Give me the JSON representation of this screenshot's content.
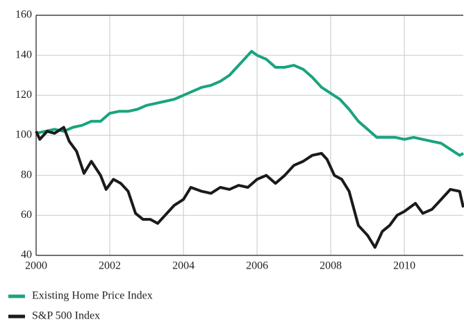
{
  "chart_data": {
    "type": "line",
    "xlim": [
      2000,
      2011.6
    ],
    "xticks": [
      2000,
      2002,
      2004,
      2006,
      2008,
      2010
    ],
    "ylim": [
      40,
      160
    ],
    "yticks": [
      40,
      60,
      80,
      100,
      120,
      140,
      160
    ],
    "grid": true,
    "series": [
      {
        "name": "Existing Home Price Index",
        "color": "#1aa37f",
        "x": [
          2000.0,
          2000.25,
          2000.5,
          2000.75,
          2001.0,
          2001.25,
          2001.5,
          2001.75,
          2002.0,
          2002.25,
          2002.5,
          2002.75,
          2003.0,
          2003.25,
          2003.5,
          2003.75,
          2004.0,
          2004.25,
          2004.5,
          2004.75,
          2005.0,
          2005.25,
          2005.5,
          2005.75,
          2005.85,
          2006.0,
          2006.25,
          2006.5,
          2006.75,
          2007.0,
          2007.25,
          2007.5,
          2007.75,
          2008.0,
          2008.25,
          2008.5,
          2008.75,
          2009.0,
          2009.25,
          2009.5,
          2009.75,
          2010.0,
          2010.25,
          2010.5,
          2010.75,
          2011.0,
          2011.25,
          2011.5,
          2011.6
        ],
        "values": [
          101,
          102,
          103,
          102,
          104,
          105,
          107,
          107,
          111,
          112,
          112,
          113,
          115,
          116,
          117,
          118,
          120,
          122,
          124,
          125,
          127,
          130,
          135,
          140,
          142,
          140,
          138,
          134,
          134,
          135,
          133,
          129,
          124,
          121,
          118,
          113,
          107,
          103,
          99,
          99,
          99,
          98,
          99,
          98,
          97,
          96,
          93,
          90,
          91
        ]
      },
      {
        "name": "S&P 500 Index",
        "color": "#1a1a1a",
        "x": [
          2000.0,
          2000.1,
          2000.3,
          2000.5,
          2000.75,
          2000.9,
          2001.1,
          2001.3,
          2001.5,
          2001.75,
          2001.9,
          2002.1,
          2002.3,
          2002.5,
          2002.7,
          2002.9,
          2003.1,
          2003.3,
          2003.5,
          2003.75,
          2004.0,
          2004.2,
          2004.5,
          2004.75,
          2005.0,
          2005.25,
          2005.5,
          2005.75,
          2006.0,
          2006.25,
          2006.5,
          2006.75,
          2007.0,
          2007.25,
          2007.5,
          2007.75,
          2007.9,
          2008.1,
          2008.3,
          2008.5,
          2008.75,
          2009.0,
          2009.2,
          2009.4,
          2009.6,
          2009.8,
          2010.0,
          2010.3,
          2010.5,
          2010.75,
          2011.0,
          2011.25,
          2011.5,
          2011.6
        ],
        "values": [
          102,
          98,
          102,
          101,
          104,
          97,
          92,
          81,
          87,
          80,
          73,
          78,
          76,
          72,
          61,
          58,
          58,
          56,
          60,
          65,
          68,
          74,
          72,
          71,
          74,
          73,
          75,
          74,
          78,
          80,
          76,
          80,
          85,
          87,
          90,
          91,
          88,
          80,
          78,
          72,
          55,
          50,
          44,
          52,
          55,
          60,
          62,
          66,
          61,
          63,
          68,
          73,
          72,
          64
        ]
      }
    ]
  }
}
